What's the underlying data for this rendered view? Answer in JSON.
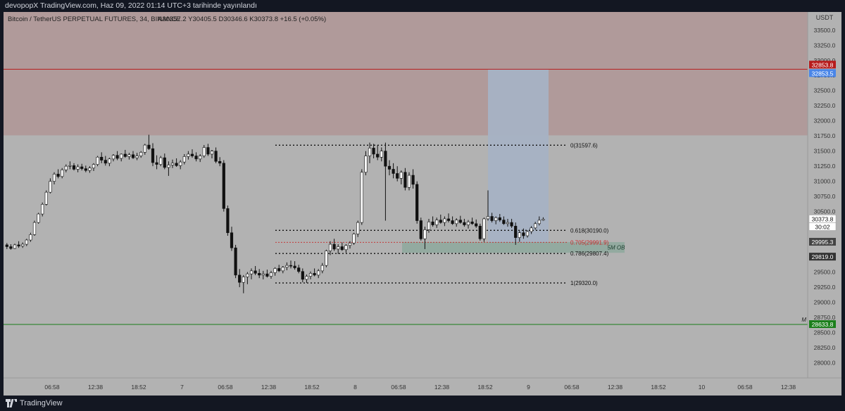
{
  "header": {
    "published": "devopopX TradingView.com, Haz 09, 2022 01:14 UTC+3 tarihinde yayınlandı"
  },
  "legend": {
    "symbol": "Bitcoin / TetherUS PERPETUAL FUTURES, 34, BINANCE",
    "ohlc": "A30357.2  Y30405.5  D30346.6  K30373.8  +16.5 (+0.05%)"
  },
  "footer": {
    "brand": "TradingView"
  },
  "colors": {
    "background": "#b2b2b2",
    "supply_zone": "#b09a9a",
    "long_target": "#a7b2c4",
    "ob_zone": "#8fa89d",
    "up_candle": "#ffffff",
    "down_candle": "#111111",
    "resistance_line": "#b71c1c",
    "support_line": "#1b7f1b",
    "fib_line": "#111111",
    "fib_705": "#c62828"
  },
  "chart_data": {
    "type": "candlestick",
    "currency": "USDT",
    "ylim": [
      27750,
      33800
    ],
    "price_ticks": [
      28000.0,
      28250.0,
      28500.0,
      28750.0,
      29000.0,
      29250.0,
      29500.0,
      29750.0,
      30000.0,
      30250.0,
      30500.0,
      30750.0,
      31000.0,
      31250.0,
      31500.0,
      31750.0,
      32000.0,
      32250.0,
      32500.0,
      32750.0,
      33000.0,
      33250.0,
      33500.0
    ],
    "time_ticks": [
      "06:58",
      "12:38",
      "18:52",
      "7",
      "06:58",
      "12:38",
      "18:52",
      "8",
      "06:58",
      "12:38",
      "18:52",
      "9",
      "06:58",
      "12:38",
      "18:52",
      "10",
      "06:58",
      "12:38"
    ],
    "price_labels": [
      {
        "name": "resistance",
        "text": "32853.8",
        "value": 32853.8,
        "color": "#b71c1c"
      },
      {
        "name": "long-target",
        "text": "32853.5",
        "value": 32853.5,
        "color": "#4a86e8"
      },
      {
        "name": "last-price",
        "text": "30373.8",
        "value": 30373.8,
        "color": "#ffffff"
      },
      {
        "name": "countdown",
        "text": "30:02",
        "value": 30250,
        "color": "#ffffff"
      },
      {
        "name": "ob-top",
        "text": "29995.3",
        "value": 29995.3,
        "color": "#444444"
      },
      {
        "name": "ob-bottom",
        "text": "29819.0",
        "value": 29819.0,
        "color": "#333333"
      },
      {
        "name": "support",
        "text": "28633.8",
        "value": 28633.8,
        "color": "#1b7f1b"
      }
    ],
    "zones": [
      {
        "name": "supply-zone",
        "from": 31760,
        "to": 33800
      },
      {
        "name": "long-target-box",
        "from": 29950,
        "to": 32853.5
      },
      {
        "name": "order-block",
        "from": 29819,
        "to": 29995.3
      }
    ],
    "levels": [
      {
        "name": "resistance",
        "value": 32853.8
      },
      {
        "name": "support",
        "value": 28633.8
      }
    ],
    "fib": [
      {
        "label": "0(31597.6)",
        "value": 31597.6
      },
      {
        "label": "0.618(30190.0)",
        "value": 30190.0
      },
      {
        "label": "0.705(29991.9)",
        "value": 29991.9
      },
      {
        "label": "0.786(29807.4)",
        "value": 29807.4
      },
      {
        "label": "1(29320.0)",
        "value": 29320.0
      }
    ],
    "ob_label": "5M OB",
    "marker": "M",
    "candles": [
      [
        29950,
        29980,
        29880,
        29920
      ],
      [
        29920,
        29960,
        29870,
        29890
      ],
      [
        29890,
        29970,
        29880,
        29950
      ],
      [
        29950,
        30010,
        29900,
        29930
      ],
      [
        29930,
        29990,
        29900,
        29960
      ],
      [
        29960,
        30050,
        29930,
        30030
      ],
      [
        30030,
        30150,
        30000,
        30120
      ],
      [
        30120,
        30350,
        30100,
        30320
      ],
      [
        30320,
        30480,
        30300,
        30460
      ],
      [
        30460,
        30650,
        30420,
        30620
      ],
      [
        30620,
        30850,
        30600,
        30820
      ],
      [
        30820,
        31050,
        30800,
        31000
      ],
      [
        31000,
        31150,
        30950,
        31120
      ],
      [
        31120,
        31200,
        31050,
        31080
      ],
      [
        31080,
        31220,
        31050,
        31190
      ],
      [
        31190,
        31280,
        31150,
        31250
      ],
      [
        31250,
        31330,
        31200,
        31260
      ],
      [
        31260,
        31300,
        31180,
        31200
      ],
      [
        31200,
        31280,
        31150,
        31240
      ],
      [
        31240,
        31290,
        31180,
        31210
      ],
      [
        31210,
        31260,
        31150,
        31180
      ],
      [
        31180,
        31250,
        31140,
        31220
      ],
      [
        31220,
        31300,
        31170,
        31280
      ],
      [
        31280,
        31420,
        31250,
        31400
      ],
      [
        31400,
        31480,
        31300,
        31350
      ],
      [
        31350,
        31420,
        31260,
        31300
      ],
      [
        31300,
        31390,
        31250,
        31370
      ],
      [
        31370,
        31450,
        31330,
        31430
      ],
      [
        31430,
        31500,
        31350,
        31380
      ],
      [
        31380,
        31460,
        31330,
        31450
      ],
      [
        31450,
        31520,
        31390,
        31410
      ],
      [
        31410,
        31470,
        31360,
        31440
      ],
      [
        31440,
        31500,
        31370,
        31390
      ],
      [
        31390,
        31470,
        31350,
        31420
      ],
      [
        31420,
        31500,
        31390,
        31480
      ],
      [
        31480,
        31620,
        31440,
        31600
      ],
      [
        31600,
        31770,
        31520,
        31540
      ],
      [
        31540,
        31630,
        31250,
        31310
      ],
      [
        31310,
        31430,
        31200,
        31280
      ],
      [
        31280,
        31420,
        31250,
        31390
      ],
      [
        31390,
        31460,
        31200,
        31230
      ],
      [
        31230,
        31330,
        31090,
        31270
      ],
      [
        31270,
        31360,
        31220,
        31300
      ],
      [
        31300,
        31380,
        31240,
        31260
      ],
      [
        31260,
        31350,
        31200,
        31320
      ],
      [
        31320,
        31450,
        31280,
        31410
      ],
      [
        31410,
        31500,
        31360,
        31450
      ],
      [
        31450,
        31530,
        31390,
        31420
      ],
      [
        31420,
        31480,
        31330,
        31370
      ],
      [
        31370,
        31450,
        31320,
        31420
      ],
      [
        31420,
        31600,
        31390,
        31560
      ],
      [
        31560,
        31620,
        31420,
        31450
      ],
      [
        31450,
        31520,
        31380,
        31500
      ],
      [
        31500,
        31560,
        31300,
        31330
      ],
      [
        31330,
        31400,
        31250,
        31300
      ],
      [
        31300,
        31350,
        30500,
        30550
      ],
      [
        30550,
        30600,
        30100,
        30150
      ],
      [
        30150,
        30250,
        29850,
        29900
      ],
      [
        29900,
        29950,
        29400,
        29450
      ],
      [
        29450,
        29550,
        29250,
        29330
      ],
      [
        29330,
        29450,
        29150,
        29420
      ],
      [
        29420,
        29500,
        29300,
        29470
      ],
      [
        29470,
        29560,
        29380,
        29520
      ],
      [
        29520,
        29600,
        29450,
        29480
      ],
      [
        29480,
        29550,
        29400,
        29450
      ],
      [
        29450,
        29520,
        29380,
        29470
      ],
      [
        29470,
        29540,
        29410,
        29430
      ],
      [
        29430,
        29520,
        29390,
        29490
      ],
      [
        29490,
        29580,
        29440,
        29560
      ],
      [
        29560,
        29620,
        29500,
        29520
      ],
      [
        29520,
        29600,
        29480,
        29580
      ],
      [
        29580,
        29660,
        29530,
        29610
      ],
      [
        29610,
        29690,
        29560,
        29600
      ],
      [
        29600,
        29680,
        29540,
        29570
      ],
      [
        29570,
        29620,
        29480,
        29510
      ],
      [
        29510,
        29560,
        29330,
        29380
      ],
      [
        29380,
        29460,
        29320,
        29430
      ],
      [
        29430,
        29510,
        29380,
        29480
      ],
      [
        29480,
        29560,
        29430,
        29450
      ],
      [
        29450,
        29550,
        29400,
        29520
      ],
      [
        29520,
        29650,
        29480,
        29610
      ],
      [
        29610,
        29870,
        29580,
        29850
      ],
      [
        29850,
        30010,
        29780,
        29960
      ],
      [
        29960,
        30050,
        29850,
        29880
      ],
      [
        29880,
        29960,
        29800,
        29920
      ],
      [
        29920,
        29990,
        29850,
        29870
      ],
      [
        29870,
        29960,
        29820,
        29940
      ],
      [
        29940,
        30010,
        29890,
        29980
      ],
      [
        29980,
        30150,
        29950,
        30130
      ],
      [
        30130,
        30350,
        30080,
        30320
      ],
      [
        30320,
        31200,
        30280,
        31150
      ],
      [
        31150,
        31500,
        31100,
        31420
      ],
      [
        31420,
        31640,
        31300,
        31550
      ],
      [
        31550,
        31620,
        31380,
        31450
      ],
      [
        31450,
        31600,
        31350,
        31400
      ],
      [
        31400,
        31560,
        31330,
        31500
      ],
      [
        31500,
        31640,
        30350,
        31250
      ],
      [
        31250,
        31350,
        31100,
        31200
      ],
      [
        31200,
        31300,
        31050,
        31130
      ],
      [
        31130,
        31250,
        31000,
        31050
      ],
      [
        31050,
        31180,
        30950,
        31150
      ],
      [
        31150,
        31220,
        30850,
        30900
      ],
      [
        30900,
        31150,
        30850,
        31100
      ],
      [
        31100,
        31200,
        30880,
        30950
      ],
      [
        30950,
        31000,
        30300,
        30350
      ],
      [
        30350,
        30400,
        30020,
        30050
      ],
      [
        30050,
        30250,
        29880,
        30200
      ],
      [
        30200,
        30380,
        30150,
        30330
      ],
      [
        30330,
        30420,
        30250,
        30280
      ],
      [
        30280,
        30400,
        30230,
        30360
      ],
      [
        30360,
        30450,
        30300,
        30320
      ],
      [
        30320,
        30420,
        30260,
        30380
      ],
      [
        30380,
        30470,
        30320,
        30350
      ],
      [
        30350,
        30420,
        30280,
        30300
      ],
      [
        30300,
        30390,
        30250,
        30360
      ],
      [
        30360,
        30430,
        30300,
        30320
      ],
      [
        30320,
        30380,
        30250,
        30280
      ],
      [
        30280,
        30360,
        30220,
        30330
      ],
      [
        30330,
        30400,
        30280,
        30300
      ],
      [
        30300,
        30370,
        30230,
        30260
      ],
      [
        30260,
        30300,
        30020,
        30050
      ],
      [
        30050,
        30400,
        30000,
        30380
      ],
      [
        30380,
        30850,
        30350,
        30420
      ],
      [
        30420,
        30480,
        30320,
        30350
      ],
      [
        30350,
        30420,
        30290,
        30400
      ],
      [
        30400,
        30460,
        30330,
        30360
      ],
      [
        30360,
        30420,
        30280,
        30300
      ],
      [
        30300,
        30380,
        30250,
        30320
      ],
      [
        30320,
        30380,
        30230,
        30260
      ],
      [
        30260,
        30320,
        29950,
        30070
      ],
      [
        30070,
        30180,
        30000,
        30150
      ],
      [
        30150,
        30220,
        30050,
        30100
      ],
      [
        30100,
        30190,
        30070,
        30170
      ],
      [
        30170,
        30260,
        30130,
        30230
      ],
      [
        30230,
        30330,
        30200,
        30300
      ],
      [
        30300,
        30420,
        30270,
        30357.2
      ],
      [
        30357.2,
        30405.5,
        30346.6,
        30373.8
      ]
    ]
  }
}
